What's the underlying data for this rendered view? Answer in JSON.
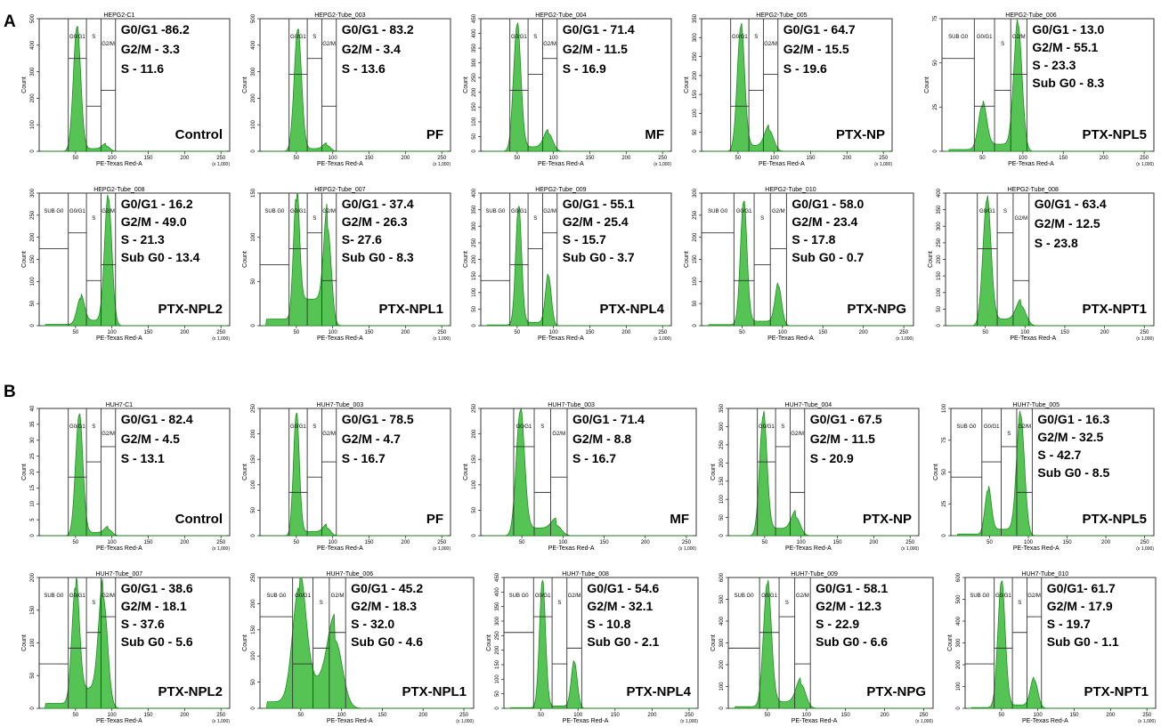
{
  "figure": {
    "panel_labels": [
      "A",
      "B"
    ],
    "colors": {
      "fill": "#55c455",
      "stroke": "#1e8f1e",
      "frame": "#333333",
      "text": "#000000"
    },
    "axis": {
      "xlabel": "PE-Texas Red-A",
      "ylabel": "Count",
      "x_unit": "(x 1,000)"
    }
  },
  "chart_data": [
    {
      "type": "area",
      "title": "HEPG2-C1",
      "condition": "Control",
      "stats": [
        "G0/G1 -86.2",
        "G2/M - 3.3",
        "S -  11.6"
      ],
      "gates": [
        "G0/G1",
        "S",
        "G2/M"
      ],
      "xlim": [
        0,
        262
      ],
      "xticks": [
        50,
        100,
        150,
        200,
        250
      ],
      "ylim": [
        0,
        500
      ],
      "yticks": [
        0,
        100,
        200,
        300,
        400,
        500
      ],
      "peaks": [
        {
          "x": 52,
          "y": 470,
          "w": 5
        },
        {
          "x": 92,
          "y": 20,
          "w": 5
        }
      ],
      "base": 10
    },
    {
      "type": "area",
      "title": "HEPG2-Tube_003",
      "condition": "PF",
      "stats": [
        "G0/G1 - 83.2",
        "G2/M - 3.4",
        "S - 13.6"
      ],
      "gates": [
        "G0/G1",
        "S",
        "G2/M"
      ],
      "xlim": [
        0,
        262
      ],
      "xticks": [
        50,
        100,
        150,
        200,
        250
      ],
      "ylim": [
        0,
        500
      ],
      "yticks": [
        0,
        100,
        200,
        300,
        400,
        500
      ],
      "peaks": [
        {
          "x": 52,
          "y": 460,
          "w": 5
        },
        {
          "x": 92,
          "y": 22,
          "w": 5
        }
      ],
      "base": 10
    },
    {
      "type": "area",
      "title": "HEPG2-Tube_004",
      "condition": "MF",
      "stats": [
        "G0/G1 - 71.4",
        "G2/M - 11.5",
        "S - 16.9"
      ],
      "gates": [
        "G0/G1",
        "S",
        "G2/M"
      ],
      "xlim": [
        0,
        262
      ],
      "xticks": [
        50,
        100,
        150,
        200,
        250
      ],
      "ylim": [
        0,
        450
      ],
      "yticks": [
        0,
        50,
        100,
        150,
        200,
        250,
        300,
        350,
        400,
        450
      ],
      "peaks": [
        {
          "x": 50,
          "y": 430,
          "w": 5
        },
        {
          "x": 93,
          "y": 60,
          "w": 6
        }
      ],
      "base": 15
    },
    {
      "type": "area",
      "title": "HEPG2-Tube_005",
      "condition": "PTX-NP",
      "stats": [
        "G0/G1 - 64.7",
        "G2/M - 15.5",
        "S - 19.6"
      ],
      "gates": [
        "G0/G1",
        "S",
        "G2/M"
      ],
      "xlim": [
        0,
        262
      ],
      "xticks": [
        50,
        100,
        150,
        200,
        250
      ],
      "ylim": [
        0,
        350
      ],
      "yticks": [
        0,
        50,
        100,
        150,
        200,
        250,
        300,
        350
      ],
      "peaks": [
        {
          "x": 54,
          "y": 330,
          "w": 5
        },
        {
          "x": 93,
          "y": 55,
          "w": 6
        }
      ],
      "base": 15
    },
    {
      "type": "area",
      "title": "HEPG2-Tube_006",
      "condition": "PTX-NPL5",
      "stats": [
        "G0/G1 - 13.0",
        "G2/M - 55.1",
        "S - 23.3",
        "Sub G0 - 8.3"
      ],
      "gates": [
        "SUB G0",
        "G0/G1",
        "S",
        "G2/M"
      ],
      "xlim": [
        0,
        262
      ],
      "xticks": [
        50,
        100,
        150,
        200,
        250
      ],
      "ylim": [
        0,
        75
      ],
      "yticks": [
        0,
        25,
        50,
        75
      ],
      "peaks": [
        {
          "x": 50,
          "y": 25,
          "w": 5
        },
        {
          "x": 94,
          "y": 72,
          "w": 5
        }
      ],
      "base": 4
    },
    {
      "type": "area",
      "title": "HEPG2-Tube_008",
      "condition": "PTX-NPL2",
      "stats": [
        "G0/G1 - 16.2",
        "G2/M - 49.0",
        "S - 21.3",
        "Sub G0 - 13.4"
      ],
      "gates": [
        "SUB G0",
        "G0/G1",
        "S",
        "G2/M"
      ],
      "xlim": [
        0,
        262
      ],
      "xticks": [
        50,
        100,
        150,
        200,
        250
      ],
      "ylim": [
        0,
        300
      ],
      "yticks": [
        0,
        50,
        100,
        150,
        200,
        250,
        300
      ],
      "peaks": [
        {
          "x": 57,
          "y": 60,
          "w": 5
        },
        {
          "x": 95,
          "y": 290,
          "w": 5
        }
      ],
      "base": 12
    },
    {
      "type": "area",
      "title": "HEPG2-Tube_007",
      "condition": "PTX-NPL1",
      "stats": [
        "G0/G1 - 37.4",
        "G2/M -  26.3",
        "S-  27.6",
        "Sub G0 - 8.3"
      ],
      "gates": [
        "SUB G0",
        "G0/G1",
        "S",
        "G2/M"
      ],
      "xlim": [
        0,
        262
      ],
      "xticks": [
        50,
        100,
        150,
        200,
        250
      ],
      "ylim": [
        0,
        150
      ],
      "yticks": [
        0,
        50,
        100,
        150
      ],
      "peaks": [
        {
          "x": 50,
          "y": 140,
          "w": 4
        },
        {
          "x": 93,
          "y": 110,
          "w": 5
        }
      ],
      "base": 30
    },
    {
      "type": "area",
      "title": "HEPG2-Tube_009",
      "condition": "PTX-NPL4",
      "stats": [
        "G0/G1 - 55.1",
        "G2/M - 25.4",
        "S - 15.7",
        "Sub G0 - 3.7"
      ],
      "gates": [
        "SUB G0",
        "G0/G1",
        "S",
        "G2/M"
      ],
      "xlim": [
        0,
        262
      ],
      "xticks": [
        50,
        100,
        150,
        200,
        250
      ],
      "ylim": [
        0,
        400
      ],
      "yticks": [
        0,
        50,
        100,
        150,
        200,
        250,
        300,
        350,
        400
      ],
      "peaks": [
        {
          "x": 52,
          "y": 360,
          "w": 4
        },
        {
          "x": 93,
          "y": 150,
          "w": 4
        }
      ],
      "base": 10
    },
    {
      "type": "area",
      "title": "HEPG2-Tube_010",
      "condition": "PTX-NPG",
      "stats": [
        "G0/G1 - 58.0",
        "G2/M - 23.4",
        "S - 17.8",
        "Sub G0 - 0.7"
      ],
      "gates": [
        "SUB G0",
        "G0/G1",
        "S",
        "G2/M"
      ],
      "xlim": [
        0,
        262
      ],
      "xticks": [
        50,
        100,
        150,
        200,
        250
      ],
      "ylim": [
        0,
        300
      ],
      "yticks": [
        0,
        50,
        100,
        150,
        200,
        250,
        300
      ],
      "peaks": [
        {
          "x": 52,
          "y": 280,
          "w": 4
        },
        {
          "x": 95,
          "y": 90,
          "w": 4
        }
      ],
      "base": 10
    },
    {
      "type": "area",
      "title": "HEPG2-Tube_008",
      "condition": "PTX-NPT1",
      "stats": [
        "G0/G1 - 63.4",
        "G2/M - 12.5",
        "S - 23.8"
      ],
      "gates": [
        "G0/G1",
        "S",
        "G2/M"
      ],
      "xlim": [
        0,
        262
      ],
      "xticks": [
        50,
        100,
        150,
        200,
        250
      ],
      "ylim": [
        0,
        400
      ],
      "yticks": [
        0,
        50,
        100,
        150,
        200,
        250,
        300,
        350,
        400
      ],
      "peaks": [
        {
          "x": 52,
          "y": 380,
          "w": 5
        },
        {
          "x": 95,
          "y": 60,
          "w": 6
        }
      ],
      "base": 20
    },
    {
      "type": "area",
      "title": "HUH7-C1",
      "condition": "Control",
      "stats": [
        "G0/G1 - 82.4",
        "G2/M - 4.5",
        "S - 13.1"
      ],
      "gates": [
        "G0/G1",
        "S",
        "G2/M"
      ],
      "xlim": [
        0,
        262
      ],
      "xticks": [
        50,
        100,
        150,
        200,
        250
      ],
      "ylim": [
        0,
        40
      ],
      "yticks": [
        0,
        5,
        10,
        15,
        20,
        25,
        30,
        35,
        40
      ],
      "peaks": [
        {
          "x": 55,
          "y": 38,
          "w": 5
        },
        {
          "x": 95,
          "y": 2,
          "w": 5
        }
      ],
      "base": 1
    },
    {
      "type": "area",
      "title": "HUH7-Tube_003",
      "condition": "PF",
      "stats": [
        "G0/G1 - 78.5",
        "G2/M - 4.7",
        "S - 16.7"
      ],
      "gates": [
        "G0/G1",
        "S",
        "G2/M"
      ],
      "xlim": [
        0,
        262
      ],
      "xticks": [
        50,
        100,
        150,
        200,
        250
      ],
      "ylim": [
        0,
        250
      ],
      "yticks": [
        0,
        50,
        100,
        150,
        200,
        250
      ],
      "peaks": [
        {
          "x": 50,
          "y": 240,
          "w": 4
        },
        {
          "x": 92,
          "y": 15,
          "w": 5
        }
      ],
      "base": 8
    },
    {
      "type": "area",
      "title": "HUH7-Tube_003",
      "condition": "MF",
      "stats": [
        "G0/G1 - 71.4",
        "G2/M - 8.8",
        "S - 16.7"
      ],
      "gates": [
        "G0/G1",
        "S",
        "G2/M"
      ],
      "xlim": [
        0,
        262
      ],
      "xticks": [
        50,
        100,
        150,
        200,
        250
      ],
      "ylim": [
        0,
        250
      ],
      "yticks": [
        0,
        50,
        100,
        150,
        200,
        250
      ],
      "peaks": [
        {
          "x": 48,
          "y": 245,
          "w": 5
        },
        {
          "x": 92,
          "y": 20,
          "w": 6
        }
      ],
      "base": 15
    },
    {
      "type": "area",
      "title": "HUH7-Tube_004",
      "condition": "PTX-NP",
      "stats": [
        "G0/G1 - 67.5",
        "G2/M - 11.5",
        "S - 20.9"
      ],
      "gates": [
        "G0/G1",
        "S",
        "G2/M"
      ],
      "xlim": [
        0,
        262
      ],
      "xticks": [
        50,
        100,
        150,
        200,
        250
      ],
      "ylim": [
        0,
        350
      ],
      "yticks": [
        0,
        50,
        100,
        150,
        200,
        250,
        300,
        350
      ],
      "peaks": [
        {
          "x": 48,
          "y": 330,
          "w": 5
        },
        {
          "x": 93,
          "y": 50,
          "w": 6
        }
      ],
      "base": 20
    },
    {
      "type": "area",
      "title": "HUH7-Tube_005",
      "condition": "PTX-NPL5",
      "stats": [
        "G0/G1 - 16.3",
        "G2/M - 32.5",
        "S - 42.7",
        "Sub G0 - 8.5"
      ],
      "gates": [
        "SUB G0",
        "G0/G1",
        "S",
        "G2/M"
      ],
      "xlim": [
        0,
        262
      ],
      "xticks": [
        50,
        100,
        150,
        200,
        250
      ],
      "ylim": [
        0,
        100
      ],
      "yticks": [
        0,
        25,
        50,
        75,
        100
      ],
      "peaks": [
        {
          "x": 48,
          "y": 35,
          "w": 4
        },
        {
          "x": 90,
          "y": 95,
          "w": 5
        }
      ],
      "base": 5
    },
    {
      "type": "area",
      "title": "HUH7-Tube_007",
      "condition": "PTX-NPL2",
      "stats": [
        "G0/G1 - 38.6",
        "G2/M - 18.1",
        "S - 37.6",
        "Sub G0 - 5.6"
      ],
      "gates": [
        "SUB G0",
        "G0/G1",
        "S",
        "G2/M"
      ],
      "xlim": [
        0,
        262
      ],
      "xticks": [
        50,
        100,
        150,
        200,
        250
      ],
      "ylim": [
        0,
        200
      ],
      "yticks": [
        0,
        50,
        100,
        150,
        200
      ],
      "peaks": [
        {
          "x": 50,
          "y": 180,
          "w": 5
        },
        {
          "x": 88,
          "y": 170,
          "w": 6
        }
      ],
      "base": 30
    },
    {
      "type": "area",
      "title": "HUH7-Tube_006",
      "condition": "PTX-NPL1",
      "stats": [
        "G0/G1 - 45.2",
        "G2/M - 18.3",
        "S - 32.0",
        "Sub G0 - 4.6"
      ],
      "gates": [
        "SUB G0",
        "G0/G1",
        "S",
        "G2/M"
      ],
      "xlim": [
        0,
        262
      ],
      "xticks": [
        50,
        100,
        150,
        200,
        250
      ],
      "ylim": [
        0,
        250
      ],
      "yticks": [
        0,
        50,
        100,
        150,
        200,
        250
      ],
      "peaks": [
        {
          "x": 48,
          "y": 220,
          "w": 8
        },
        {
          "x": 92,
          "y": 130,
          "w": 9
        }
      ],
      "base": 50
    },
    {
      "type": "area",
      "title": "HUH7-Tube_008",
      "condition": "PTX-NPL4",
      "stats": [
        "G0/G1 - 54.6",
        "G2/M - 32.1",
        "S - 10.8",
        "Sub G0 - 2.1"
      ],
      "gates": [
        "SUB G0",
        "G0/G1",
        "S",
        "G2/M"
      ],
      "xlim": [
        0,
        262
      ],
      "xticks": [
        50,
        100,
        150,
        200,
        250
      ],
      "ylim": [
        0,
        450
      ],
      "yticks": [
        0,
        50,
        100,
        150,
        200,
        250,
        300,
        350,
        400,
        450
      ],
      "peaks": [
        {
          "x": 52,
          "y": 440,
          "w": 4
        },
        {
          "x": 95,
          "y": 160,
          "w": 4
        }
      ],
      "base": 8
    },
    {
      "type": "area",
      "title": "HUH7-Tube_009",
      "condition": "PTX-NPG",
      "stats": [
        "G0/G1 - 58.1",
        "G2/M - 12.3",
        "S - 22.9",
        "Sub G0 - 6.6"
      ],
      "gates": [
        "SUB G0",
        "G0/G1",
        "S",
        "G2/M"
      ],
      "xlim": [
        0,
        262
      ],
      "xticks": [
        50,
        100,
        150,
        200,
        250
      ],
      "ylim": [
        0,
        600
      ],
      "yticks": [
        0,
        100,
        200,
        300,
        400,
        500,
        600
      ],
      "peaks": [
        {
          "x": 50,
          "y": 570,
          "w": 5
        },
        {
          "x": 93,
          "y": 110,
          "w": 6
        }
      ],
      "base": 30
    },
    {
      "type": "area",
      "title": "HUH7-Tube_010",
      "condition": "PTX-NPT1",
      "stats": [
        "G0/G1- 61.7",
        "G2/M - 17.9",
        "S - 19.7",
        "Sub G0 - 1.1"
      ],
      "gates": [
        "SUB G0",
        "G0/G1",
        "S",
        "G2/M"
      ],
      "xlim": [
        0,
        262
      ],
      "xticks": [
        50,
        100,
        150,
        200,
        250
      ],
      "ylim": [
        0,
        600
      ],
      "yticks": [
        0,
        100,
        200,
        300,
        400,
        500,
        600
      ],
      "peaks": [
        {
          "x": 50,
          "y": 580,
          "w": 5
        },
        {
          "x": 95,
          "y": 130,
          "w": 5
        }
      ],
      "base": 15
    }
  ]
}
